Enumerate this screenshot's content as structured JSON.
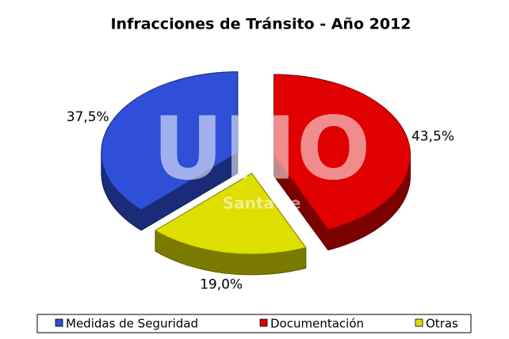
{
  "chart_data": {
    "type": "pie",
    "title": "Infracciones de Tránsito - Año 2012",
    "categories": [
      "Medidas de Seguridad",
      "Documentación",
      "Otras"
    ],
    "values": [
      37.5,
      43.5,
      19.0
    ],
    "value_labels": [
      "37,5%",
      "43,5%",
      "19,0%"
    ],
    "colors": [
      "#2f4fd8",
      "#e00000",
      "#dede00"
    ],
    "annotations": [
      "UNO",
      "Santa Fe"
    ],
    "legend": "bottom"
  }
}
